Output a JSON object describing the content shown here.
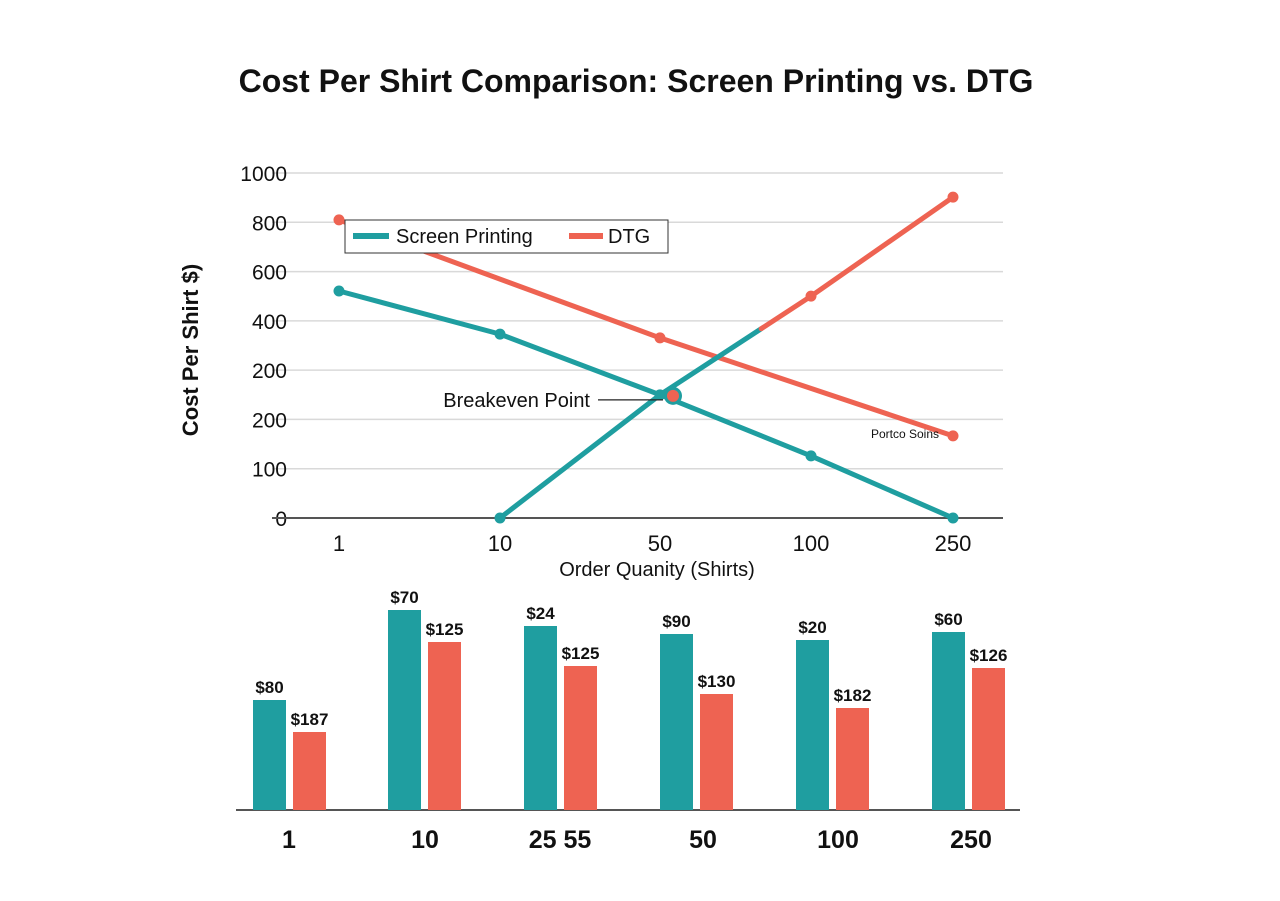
{
  "title": "Cost Per Shirt Comparison: Screen Printing vs. DTG",
  "colors": {
    "screen_printing": "#1f9ea0",
    "dtg": "#ee6352",
    "grid": "#d9d9d9",
    "axis": "#555555"
  },
  "chart_data": [
    {
      "type": "line",
      "xlabel": "Order Quanity (Shirts)",
      "ylabel": "Cost Per Shirt $)",
      "categories": [
        "1",
        "10",
        "50",
        "100",
        "250"
      ],
      "y_tick_labels": [
        "0",
        "100",
        "200",
        "200",
        "400",
        "600",
        "800",
        "1000"
      ],
      "ylim": [
        0,
        1000
      ],
      "grid": true,
      "legend": {
        "placement": "top-left",
        "entries": [
          "Screen Printing",
          "DTG"
        ]
      },
      "series": [
        {
          "name": "Screen Printing",
          "color": "#1f9ea0",
          "points": [
            [
              "1",
              658
            ],
            [
              "10",
              533
            ],
            [
              "50",
              357
            ],
            [
              "100",
              180
            ],
            [
              "250",
              0
            ]
          ]
        },
        {
          "name": "DTG",
          "color": "#ee6352",
          "points": [
            [
              "1",
              864
            ],
            [
              "50",
              522
            ],
            [
              "250",
              238
            ]
          ]
        },
        {
          "color_start": "#1f9ea0",
          "color_end": "#ee6352",
          "points": [
            [
              "10",
              0
            ],
            [
              "50",
              357
            ],
            [
              "100",
              643
            ],
            [
              "250",
              930
            ]
          ]
        }
      ],
      "annotations": [
        {
          "text": "Breakeven Point",
          "x": "50",
          "y": 354
        },
        {
          "text": "Portco Soins",
          "x": "250",
          "y": 238
        }
      ]
    },
    {
      "type": "bar",
      "categories": [
        "1",
        "10",
        "25 55",
        "50",
        "100",
        "250"
      ],
      "series": [
        {
          "color": "#1f9ea0",
          "levels": [
            0.55,
            1.0,
            0.92,
            0.88,
            0.85,
            0.89
          ],
          "labels": [
            "$80",
            "$70",
            "$24",
            "$90",
            "$20",
            "$60"
          ]
        },
        {
          "color": "#ee6352",
          "levels": [
            0.39,
            0.84,
            0.72,
            0.58,
            0.51,
            0.71
          ],
          "labels": [
            "$187",
            "$125",
            "$125",
            "$130",
            "$182",
            "$126"
          ]
        }
      ]
    }
  ]
}
